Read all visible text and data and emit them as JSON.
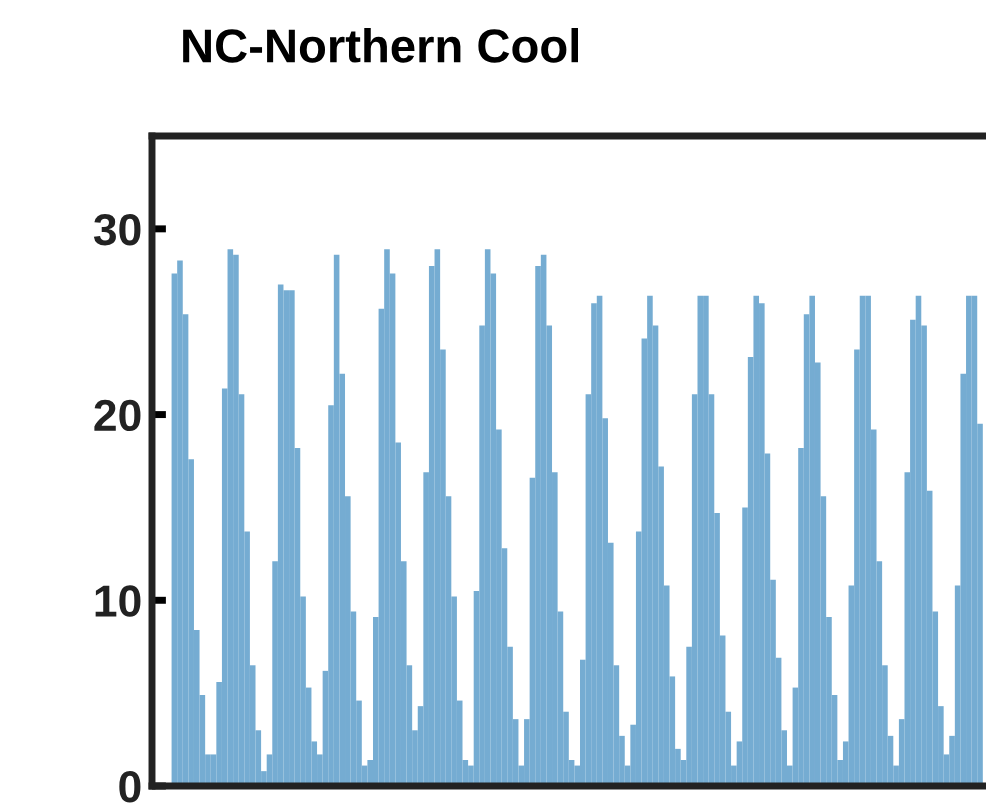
{
  "chart_data": {
    "type": "bar",
    "title": "NC-Northern Cool",
    "color": "#75acd2",
    "categories": [
      null,
      null,
      null,
      null,
      null,
      null,
      null,
      null,
      null,
      null,
      null,
      null,
      null,
      null,
      null,
      null,
      null,
      null,
      null,
      null,
      null,
      null,
      null,
      null,
      null,
      null,
      null,
      null,
      null,
      null,
      null,
      null,
      null,
      null,
      null,
      null,
      null,
      null,
      null,
      null,
      null,
      null,
      null,
      null,
      null,
      null,
      null,
      null,
      null,
      null,
      null,
      null,
      null,
      null,
      null,
      null,
      null,
      null,
      null,
      null,
      null,
      null,
      null,
      null,
      null,
      null,
      null,
      null,
      null,
      null,
      null,
      null,
      null,
      null,
      null,
      null,
      null,
      null,
      null,
      null,
      null,
      null,
      null,
      null,
      null,
      null,
      null,
      null,
      null,
      null,
      null,
      null,
      null,
      null,
      null,
      null,
      null,
      null,
      null,
      null,
      null,
      null,
      null,
      null,
      null,
      null,
      null,
      null,
      null,
      null,
      null,
      null,
      null,
      null,
      null,
      null,
      null,
      null,
      null,
      null,
      null,
      null,
      null,
      null,
      null,
      null,
      null,
      null,
      null,
      null,
      null,
      null,
      null,
      null,
      null,
      null,
      null,
      null,
      null,
      null,
      null,
      null,
      null,
      null,
      null
    ],
    "values": [
      27.6,
      28.3,
      25.4,
      17.6,
      8.4,
      4.9,
      1.7,
      1.7,
      5.6,
      21.4,
      28.9,
      28.6,
      21.1,
      13.7,
      6.5,
      3,
      0.8,
      1.7,
      12.1,
      27,
      26.7,
      26.7,
      18.2,
      10.2,
      5.3,
      2.4,
      1.7,
      6.2,
      20.5,
      28.6,
      22.2,
      15.6,
      9.4,
      4.6,
      1.1,
      1.4,
      9.1,
      25.7,
      28.9,
      27.6,
      18.5,
      12.1,
      6.5,
      3,
      4.3,
      16.9,
      28,
      28.9,
      23.5,
      15.6,
      10.2,
      4.6,
      1.4,
      1.1,
      10.5,
      24.8,
      28.9,
      27.6,
      19.2,
      12.8,
      7.5,
      3.6,
      1.1,
      3.6,
      16.6,
      28,
      28.6,
      24.8,
      16.9,
      9.4,
      4,
      1.4,
      1.1,
      6.8,
      21.1,
      26,
      26.4,
      19.8,
      13.1,
      6.5,
      2.7,
      1.1,
      3.3,
      13.7,
      24.1,
      26.4,
      24.8,
      17.2,
      10.8,
      5.9,
      2,
      1.4,
      7.5,
      21.1,
      26.4,
      26.4,
      21.1,
      14.7,
      8.1,
      4,
      1.1,
      2.4,
      15,
      23.1,
      26.4,
      26,
      17.9,
      11.1,
      6.9,
      3,
      1.1,
      5.3,
      18.2,
      25.4,
      26.4,
      22.8,
      15.6,
      9.1,
      4.9,
      1.4,
      2.4,
      10.8,
      23.5,
      26.4,
      26.4,
      19.2,
      12.1,
      6.5,
      2.7,
      1.1,
      3.6,
      16.9,
      25.1,
      26.4,
      24.8,
      15.9,
      9.4,
      4.3,
      1.7,
      2.7,
      10.8,
      22.2,
      26.4,
      26.4,
      19.5
    ],
    "ylim": [
      0,
      35
    ],
    "yticks": [
      0,
      10,
      20,
      30
    ],
    "tick_labels": "y",
    "grid": false,
    "legend": false
  }
}
